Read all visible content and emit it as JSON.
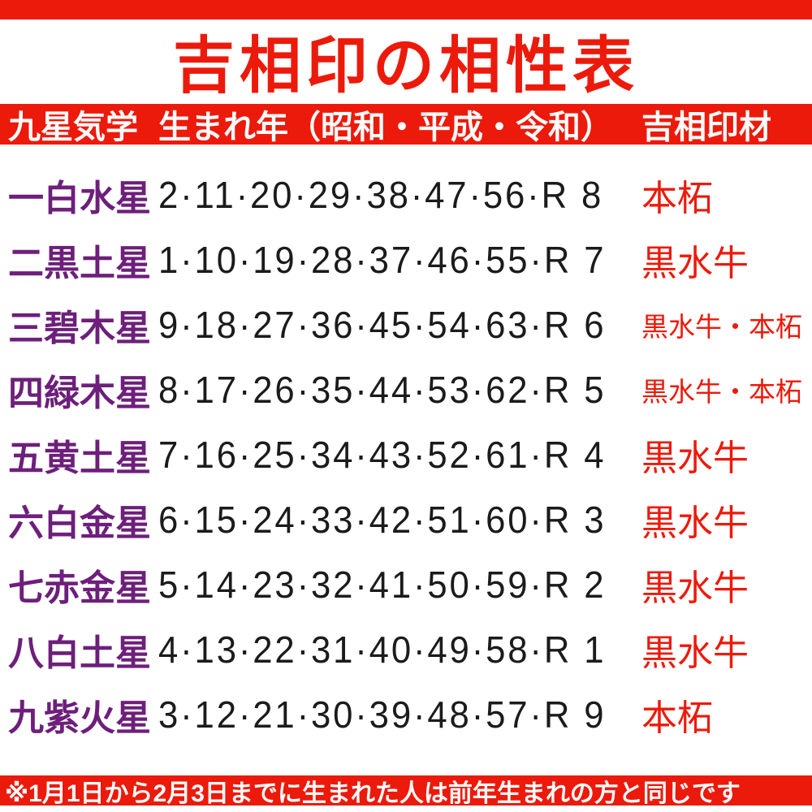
{
  "title": "吉相印の相性表",
  "header": {
    "star": "九星気学",
    "years": "生まれ年（昭和・平成・令和）",
    "material": "吉相印材"
  },
  "footnote": "※1月1日から2月3日までに生まれた人は前年生まれの方と同じです",
  "colors": {
    "red": "#ec1a0b",
    "purple": "#6d1f7b",
    "number_black": "#1b1b1b",
    "background": "#ffffff"
  },
  "chart_data": {
    "type": "table",
    "title": "吉相印の相性表",
    "columns": [
      "九星気学",
      "生まれ年（昭和・平成・令和）",
      "吉相印材"
    ],
    "rows": [
      [
        "一白水星",
        "2·11·20·29·38·47·56·R 8",
        "本柘"
      ],
      [
        "二黒土星",
        "1·10·19·28·37·46·55·R 7",
        "黒水牛"
      ],
      [
        "三碧木星",
        "9·18·27·36·45·54·63·R 6",
        "黒水牛・本柘"
      ],
      [
        "四緑木星",
        "8·17·26·35·44·53·62·R 5",
        "黒水牛・本柘"
      ],
      [
        "五黄土星",
        "7·16·25·34·43·52·61·R 4",
        "黒水牛"
      ],
      [
        "六白金星",
        "6·15·24·33·42·51·60·R 3",
        "黒水牛"
      ],
      [
        "七赤金星",
        "5·14·23·32·41·50·59·R 2",
        "黒水牛"
      ],
      [
        "八白土星",
        "4·13·22·31·40·49·58·R 1",
        "黒水牛"
      ],
      [
        "九紫火星",
        "3·12·21·30·39·48·57·R 9",
        "本柘"
      ]
    ],
    "footnote": "※1月1日から2月3日までに生まれた人は前年生まれの方と同じです"
  }
}
